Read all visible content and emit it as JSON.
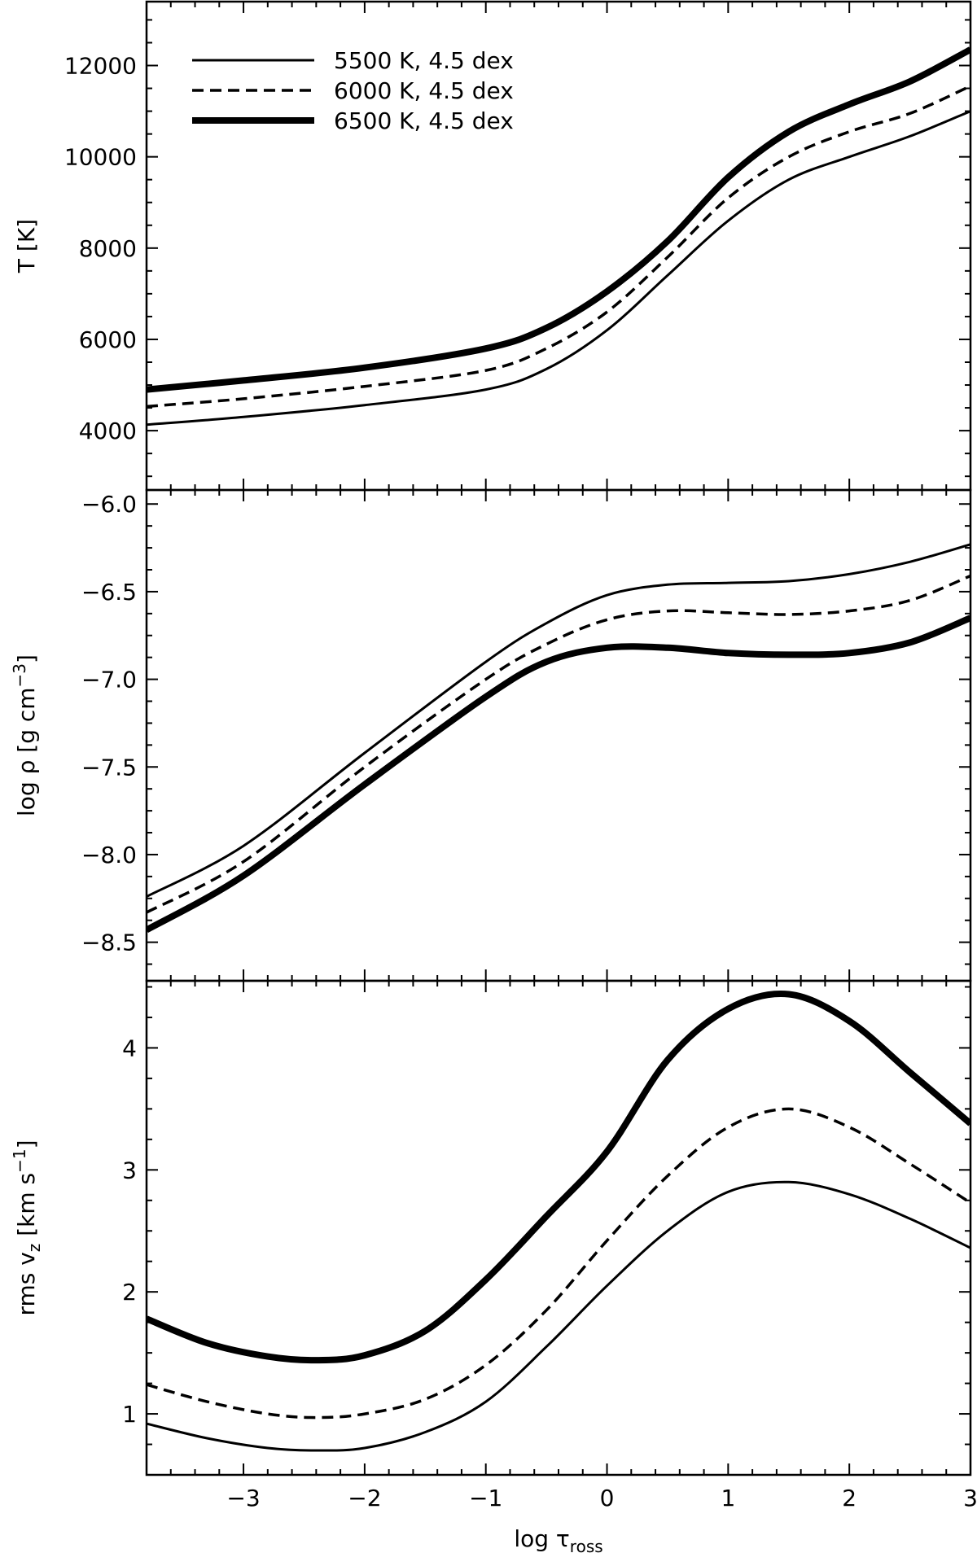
{
  "chart_data": [
    {
      "type": "line",
      "xlabel": "",
      "ylabel_main": "T [K]",
      "ylabel_sup": "",
      "ylabel_after": "",
      "xlim": [
        -3.8,
        3.0
      ],
      "ylim": [
        2700,
        13400
      ],
      "yticks": [
        4000,
        6000,
        8000,
        10000,
        12000
      ],
      "ytick_labels": [
        "4000",
        "6000",
        "8000",
        "10000",
        "12000"
      ],
      "legend": {
        "placement": "top-left",
        "entries": [
          {
            "label": "5500 K, 4.5 dex",
            "style": "solid-thin"
          },
          {
            "label": "6000 K, 4.5 dex",
            "style": "dashed"
          },
          {
            "label": "6500 K, 4.5 dex",
            "style": "solid-thick"
          }
        ]
      },
      "series": [
        {
          "style": "solid-thin",
          "x": [
            -3.8,
            -3,
            -2,
            -1,
            -0.5,
            0,
            0.5,
            1,
            1.5,
            2,
            2.5,
            3
          ],
          "y": [
            4130,
            4300,
            4560,
            4900,
            5350,
            6200,
            7400,
            8600,
            9500,
            10000,
            10450,
            11000
          ]
        },
        {
          "style": "dashed",
          "x": [
            -3.8,
            -3,
            -2,
            -1,
            -0.5,
            0,
            0.5,
            1,
            1.5,
            2,
            2.5,
            3
          ],
          "y": [
            4530,
            4700,
            4970,
            5320,
            5800,
            6600,
            7800,
            9100,
            10000,
            10550,
            10950,
            11550
          ]
        },
        {
          "style": "solid-thick",
          "x": [
            -3.8,
            -3,
            -2,
            -1,
            -0.5,
            0,
            0.5,
            1,
            1.5,
            2,
            2.5,
            3
          ],
          "y": [
            4900,
            5100,
            5380,
            5800,
            6250,
            7050,
            8150,
            9550,
            10550,
            11150,
            11650,
            12350
          ]
        }
      ]
    },
    {
      "type": "line",
      "xlabel": "",
      "ylabel_main": "log ρ [g cm",
      "ylabel_sup": "−3",
      "ylabel_after": "]",
      "xlim": [
        -3.8,
        3.0
      ],
      "ylim": [
        -8.72,
        -5.92
      ],
      "yticks": [
        -8.5,
        -8.0,
        -7.5,
        -7.0,
        -6.5,
        -6.0
      ],
      "ytick_labels": [
        "−8.5",
        "−8.0",
        "−7.5",
        "−7.0",
        "−6.5",
        "−6.0"
      ],
      "series": [
        {
          "style": "solid-thin",
          "x": [
            -3.8,
            -3,
            -2,
            -1,
            -0.5,
            0,
            0.5,
            1,
            1.5,
            2,
            2.5,
            3
          ],
          "y": [
            -8.24,
            -7.95,
            -7.42,
            -6.9,
            -6.68,
            -6.52,
            -6.46,
            -6.45,
            -6.44,
            -6.4,
            -6.33,
            -6.23
          ]
        },
        {
          "style": "dashed",
          "x": [
            -3.8,
            -3,
            -2,
            -1,
            -0.5,
            0,
            0.5,
            1,
            1.5,
            2,
            2.5,
            3
          ],
          "y": [
            -8.33,
            -8.04,
            -7.5,
            -7.0,
            -6.8,
            -6.66,
            -6.61,
            -6.62,
            -6.63,
            -6.61,
            -6.55,
            -6.41
          ]
        },
        {
          "style": "solid-thick",
          "x": [
            -3.8,
            -3,
            -2,
            -1,
            -0.5,
            0,
            0.5,
            1,
            1.5,
            2,
            2.5,
            3
          ],
          "y": [
            -8.43,
            -8.12,
            -7.6,
            -7.1,
            -6.9,
            -6.82,
            -6.82,
            -6.85,
            -6.86,
            -6.85,
            -6.79,
            -6.65
          ]
        }
      ]
    },
    {
      "type": "line",
      "xlabel": "log τ",
      "xlabel_sub": "ross",
      "ylabel_main": "rms v",
      "ylabel_sub": "z",
      "ylabel_mid": " [km s",
      "ylabel_sup": "−1",
      "ylabel_after": "]",
      "xlim": [
        -3.8,
        3.0
      ],
      "ylim": [
        0.5,
        4.55
      ],
      "xticks": [
        -3,
        -2,
        -1,
        0,
        1,
        2,
        3
      ],
      "xtick_labels": [
        "−3",
        "−2",
        "−1",
        "0",
        "1",
        "2",
        "3"
      ],
      "yticks": [
        1,
        2,
        3,
        4
      ],
      "ytick_labels": [
        "1",
        "2",
        "3",
        "4"
      ],
      "series": [
        {
          "style": "solid-thin",
          "x": [
            -3.8,
            -3.3,
            -2.8,
            -2.4,
            -2,
            -1.5,
            -1,
            -0.5,
            0,
            0.5,
            1,
            1.5,
            2,
            2.5,
            3
          ],
          "y": [
            0.92,
            0.8,
            0.72,
            0.7,
            0.72,
            0.85,
            1.1,
            1.55,
            2.05,
            2.5,
            2.82,
            2.9,
            2.8,
            2.6,
            2.36
          ]
        },
        {
          "style": "dashed",
          "x": [
            -3.8,
            -3.3,
            -2.8,
            -2.4,
            -2,
            -1.5,
            -1,
            -0.5,
            0,
            0.5,
            1,
            1.5,
            2,
            2.5,
            3
          ],
          "y": [
            1.24,
            1.1,
            1.0,
            0.97,
            1.0,
            1.12,
            1.4,
            1.85,
            2.42,
            2.95,
            3.35,
            3.5,
            3.35,
            3.05,
            2.73
          ]
        },
        {
          "style": "solid-thick",
          "x": [
            -3.8,
            -3.3,
            -2.8,
            -2.4,
            -2,
            -1.5,
            -1,
            -0.5,
            0,
            0.5,
            1,
            1.5,
            2,
            2.5,
            3
          ],
          "y": [
            1.78,
            1.58,
            1.47,
            1.44,
            1.48,
            1.68,
            2.1,
            2.62,
            3.15,
            3.9,
            4.32,
            4.44,
            4.22,
            3.8,
            3.38
          ]
        }
      ]
    }
  ]
}
